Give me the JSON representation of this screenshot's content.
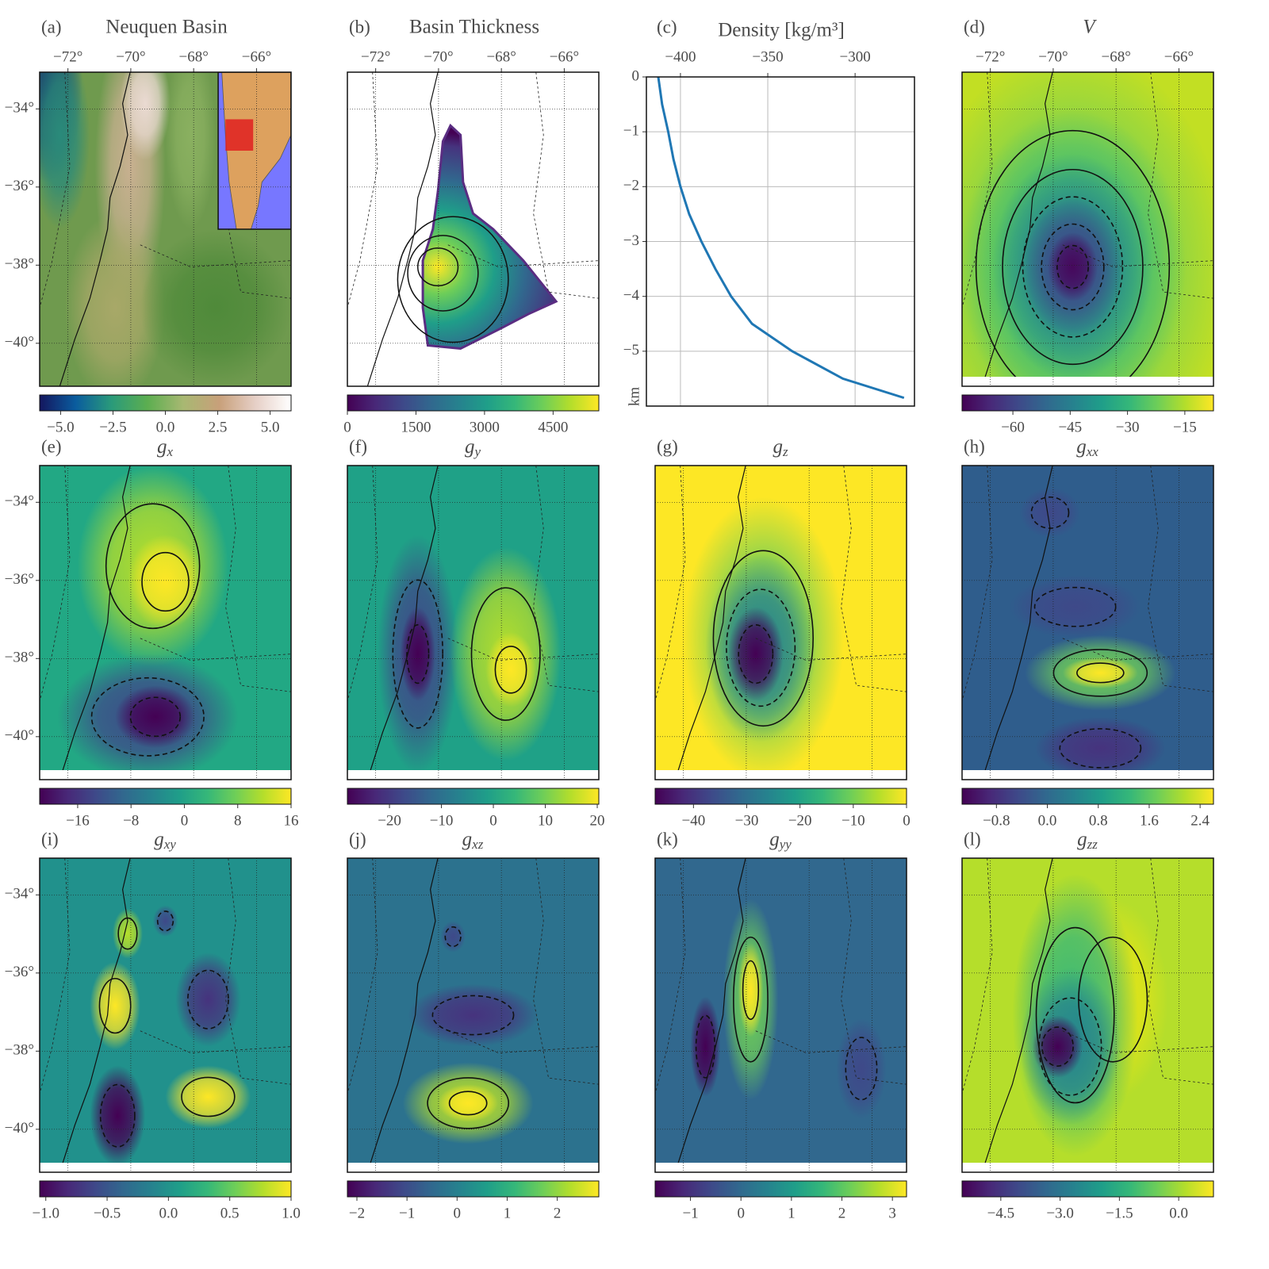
{
  "chart_data": [
    {
      "type": "map",
      "label": "(a)",
      "title": "Neuquen Basin",
      "xlim": [
        -72.9,
        -64.9
      ],
      "ylim": [
        -41.1,
        -33.06
      ],
      "xticks": [
        {
          "value": -72,
          "label": "−72°"
        },
        {
          "value": -70,
          "label": "−70°"
        },
        {
          "value": -68,
          "label": "−68°"
        },
        {
          "value": -66,
          "label": "−66°"
        }
      ],
      "yticks": [
        {
          "value": -34,
          "label": "−34°"
        },
        {
          "value": -36,
          "label": "−36°"
        },
        {
          "value": -38,
          "label": "−38°"
        },
        {
          "value": -40,
          "label": "−40°"
        }
      ],
      "colormap": "terrain",
      "clim": [
        -6,
        6
      ],
      "cticks": [
        {
          "value": -5,
          "label": "−5.0"
        },
        {
          "value": -2.5,
          "label": "−2.5"
        },
        {
          "value": 0,
          "label": "0.0"
        },
        {
          "value": 2.5,
          "label": "2.5"
        },
        {
          "value": 5,
          "label": "5.0"
        }
      ]
    },
    {
      "type": "map",
      "label": "(b)",
      "title": "Basin Thickness",
      "xlim": [
        -72.9,
        -64.9
      ],
      "ylim": [
        -41.1,
        -33.06
      ],
      "xticks": [
        {
          "value": -72,
          "label": "−72°"
        },
        {
          "value": -70,
          "label": "−70°"
        },
        {
          "value": -68,
          "label": "−68°"
        },
        {
          "value": -66,
          "label": "−66°"
        }
      ],
      "yticks": [
        -34,
        -36,
        -38,
        -40
      ],
      "colormap": "viridis",
      "clim": [
        0,
        5500
      ],
      "cticks": [
        0,
        1500,
        3000,
        4500
      ]
    },
    {
      "type": "line",
      "label": "(c)",
      "title": "Density [kg/m³]",
      "ylabel": "km",
      "color": "#1f77b4",
      "grid": true,
      "depth": [
        0,
        -0.5,
        -1,
        -1.5,
        -2,
        -2.5,
        -3,
        -3.5,
        -4,
        -4.5,
        -5,
        -5.5,
        -5.85
      ],
      "values": [
        -412.7,
        -410.5,
        -407,
        -404,
        -400,
        -395,
        -388,
        -380,
        -371,
        -359,
        -336,
        -307,
        -272
      ],
      "xlim": [
        -419.5,
        -266
      ],
      "ylim": [
        -6,
        0
      ],
      "xticks": [
        {
          "value": -400,
          "label": "−400"
        },
        {
          "value": -350,
          "label": "−350"
        },
        {
          "value": -300,
          "label": "−300"
        }
      ],
      "yticks": [
        0,
        {
          "value": -1,
          "label": "−1"
        },
        {
          "value": -2,
          "label": "−2"
        },
        {
          "value": -3,
          "label": "−3"
        },
        {
          "value": -4,
          "label": "−4"
        },
        {
          "value": -5,
          "label": "−5"
        }
      ]
    },
    {
      "type": "map",
      "label": "(d)",
      "title": "V",
      "xlim": [
        -72.9,
        -64.9
      ],
      "ylim": [
        -41.1,
        -33.06
      ],
      "xticks": [
        {
          "value": -72,
          "label": "−72°"
        },
        {
          "value": -70,
          "label": "−70°"
        },
        {
          "value": -68,
          "label": "−68°"
        },
        {
          "value": -66,
          "label": "−66°"
        }
      ],
      "yticks": [
        -34,
        -36,
        -38,
        -40
      ],
      "colormap": "viridis",
      "clim": [
        -73.3,
        -7.5
      ],
      "cticks": [
        {
          "value": -60,
          "label": "−60"
        },
        {
          "value": -45,
          "label": "−45"
        },
        {
          "value": -30,
          "label": "−30"
        },
        {
          "value": -15,
          "label": "−15"
        }
      ]
    },
    {
      "type": "map",
      "label": "(e)",
      "title": "g",
      "title_sub": "x",
      "xlim": [
        -72.9,
        -64.9
      ],
      "ylim": [
        -41.1,
        -33.06
      ],
      "xticks": [
        -72,
        -70,
        -68,
        -66
      ],
      "yticks": [
        {
          "value": -34,
          "label": "−34°"
        },
        {
          "value": -36,
          "label": "−36°"
        },
        {
          "value": -38,
          "label": "−38°"
        },
        {
          "value": -40,
          "label": "−40°"
        }
      ],
      "colormap": "viridis",
      "clim": [
        -21.7,
        16
      ],
      "cticks": [
        {
          "value": -16,
          "label": "−16"
        },
        {
          "value": -8,
          "label": "−8"
        },
        0,
        8,
        16
      ]
    },
    {
      "type": "map",
      "label": "(f)",
      "title": "g",
      "title_sub": "y",
      "xlim": [
        -72.9,
        -64.9
      ],
      "ylim": [
        -41.1,
        -33.06
      ],
      "xticks": [
        -72,
        -70,
        -68,
        -66
      ],
      "yticks": [
        -34,
        -36,
        -38,
        -40
      ],
      "colormap": "viridis",
      "clim": [
        -28.1,
        20.3
      ],
      "cticks": [
        {
          "value": -20,
          "label": "−20"
        },
        {
          "value": -10,
          "label": "−10"
        },
        0,
        10,
        20
      ]
    },
    {
      "type": "map",
      "label": "(g)",
      "title": "g",
      "title_sub": "z",
      "xlim": [
        -72.9,
        -64.9
      ],
      "ylim": [
        -41.1,
        -33.06
      ],
      "xticks": [
        -72,
        -70,
        -68,
        -66
      ],
      "yticks": [
        -34,
        -36,
        -38,
        -40
      ],
      "colormap": "viridis",
      "clim": [
        -47.2,
        0
      ],
      "cticks": [
        {
          "value": -40,
          "label": "−40"
        },
        {
          "value": -30,
          "label": "−30"
        },
        {
          "value": -20,
          "label": "−20"
        },
        {
          "value": -10,
          "label": "−10"
        },
        0
      ]
    },
    {
      "type": "map",
      "label": "(h)",
      "title": "g",
      "title_sub": "xx",
      "xlim": [
        -72.9,
        -64.9
      ],
      "ylim": [
        -41.1,
        -33.06
      ],
      "xticks": [
        -72,
        -70,
        -68,
        -66
      ],
      "yticks": [
        -34,
        -36,
        -38,
        -40
      ],
      "colormap": "viridis",
      "clim": [
        -1.34,
        2.61
      ],
      "cticks": [
        {
          "value": -0.8,
          "label": "−0.8"
        },
        {
          "value": 0,
          "label": "0.0"
        },
        0.8,
        1.6,
        2.4
      ]
    },
    {
      "type": "map",
      "label": "(i)",
      "title": "g",
      "title_sub": "xy",
      "xlim": [
        -72.9,
        -64.9
      ],
      "ylim": [
        -41.1,
        -33.06
      ],
      "xticks": [
        -72,
        -70,
        -68,
        -66
      ],
      "yticks": [
        {
          "value": -34,
          "label": "−34°"
        },
        {
          "value": -36,
          "label": "−36°"
        },
        {
          "value": -38,
          "label": "−38°"
        },
        {
          "value": -40,
          "label": "−40°"
        }
      ],
      "colormap": "viridis",
      "clim": [
        -1.05,
        1.0
      ],
      "cticks": [
        {
          "value": -1,
          "label": "−1.0"
        },
        {
          "value": -0.5,
          "label": "−0.5"
        },
        {
          "value": 0,
          "label": "0.0"
        },
        0.5,
        {
          "value": 1,
          "label": "1.0"
        }
      ]
    },
    {
      "type": "map",
      "label": "(j)",
      "title": "g",
      "title_sub": "xz",
      "xlim": [
        -72.9,
        -64.9
      ],
      "ylim": [
        -41.1,
        -33.06
      ],
      "xticks": [
        -72,
        -70,
        -68,
        -66
      ],
      "yticks": [
        -34,
        -36,
        -38,
        -40
      ],
      "colormap": "viridis",
      "clim": [
        -2.19,
        2.83
      ],
      "cticks": [
        {
          "value": -2,
          "label": "−2"
        },
        {
          "value": -1,
          "label": "−1"
        },
        0,
        1,
        2
      ]
    },
    {
      "type": "map",
      "label": "(k)",
      "title": "g",
      "title_sub": "yy",
      "xlim": [
        -72.9,
        -64.9
      ],
      "ylim": [
        -41.1,
        -33.06
      ],
      "xticks": [
        -72,
        -70,
        -68,
        -66
      ],
      "yticks": [
        -34,
        -36,
        -38,
        -40
      ],
      "colormap": "viridis",
      "clim": [
        -1.7,
        3.28
      ],
      "cticks": [
        {
          "value": -1,
          "label": "−1"
        },
        0,
        1,
        2,
        3
      ]
    },
    {
      "type": "map",
      "label": "(l)",
      "title": "g",
      "title_sub": "zz",
      "xlim": [
        -72.9,
        -64.9
      ],
      "ylim": [
        -41.1,
        -33.06
      ],
      "xticks": [
        -72,
        -70,
        -68,
        -66
      ],
      "yticks": [
        -34,
        -36,
        -38,
        -40
      ],
      "colormap": "viridis",
      "clim": [
        -5.48,
        0.88
      ],
      "cticks": [
        {
          "value": -4.5,
          "label": "−4.5"
        },
        {
          "value": -3,
          "label": "−3.0"
        },
        {
          "value": -1.5,
          "label": "−1.5"
        },
        {
          "value": 0,
          "label": "0.0"
        }
      ]
    }
  ]
}
